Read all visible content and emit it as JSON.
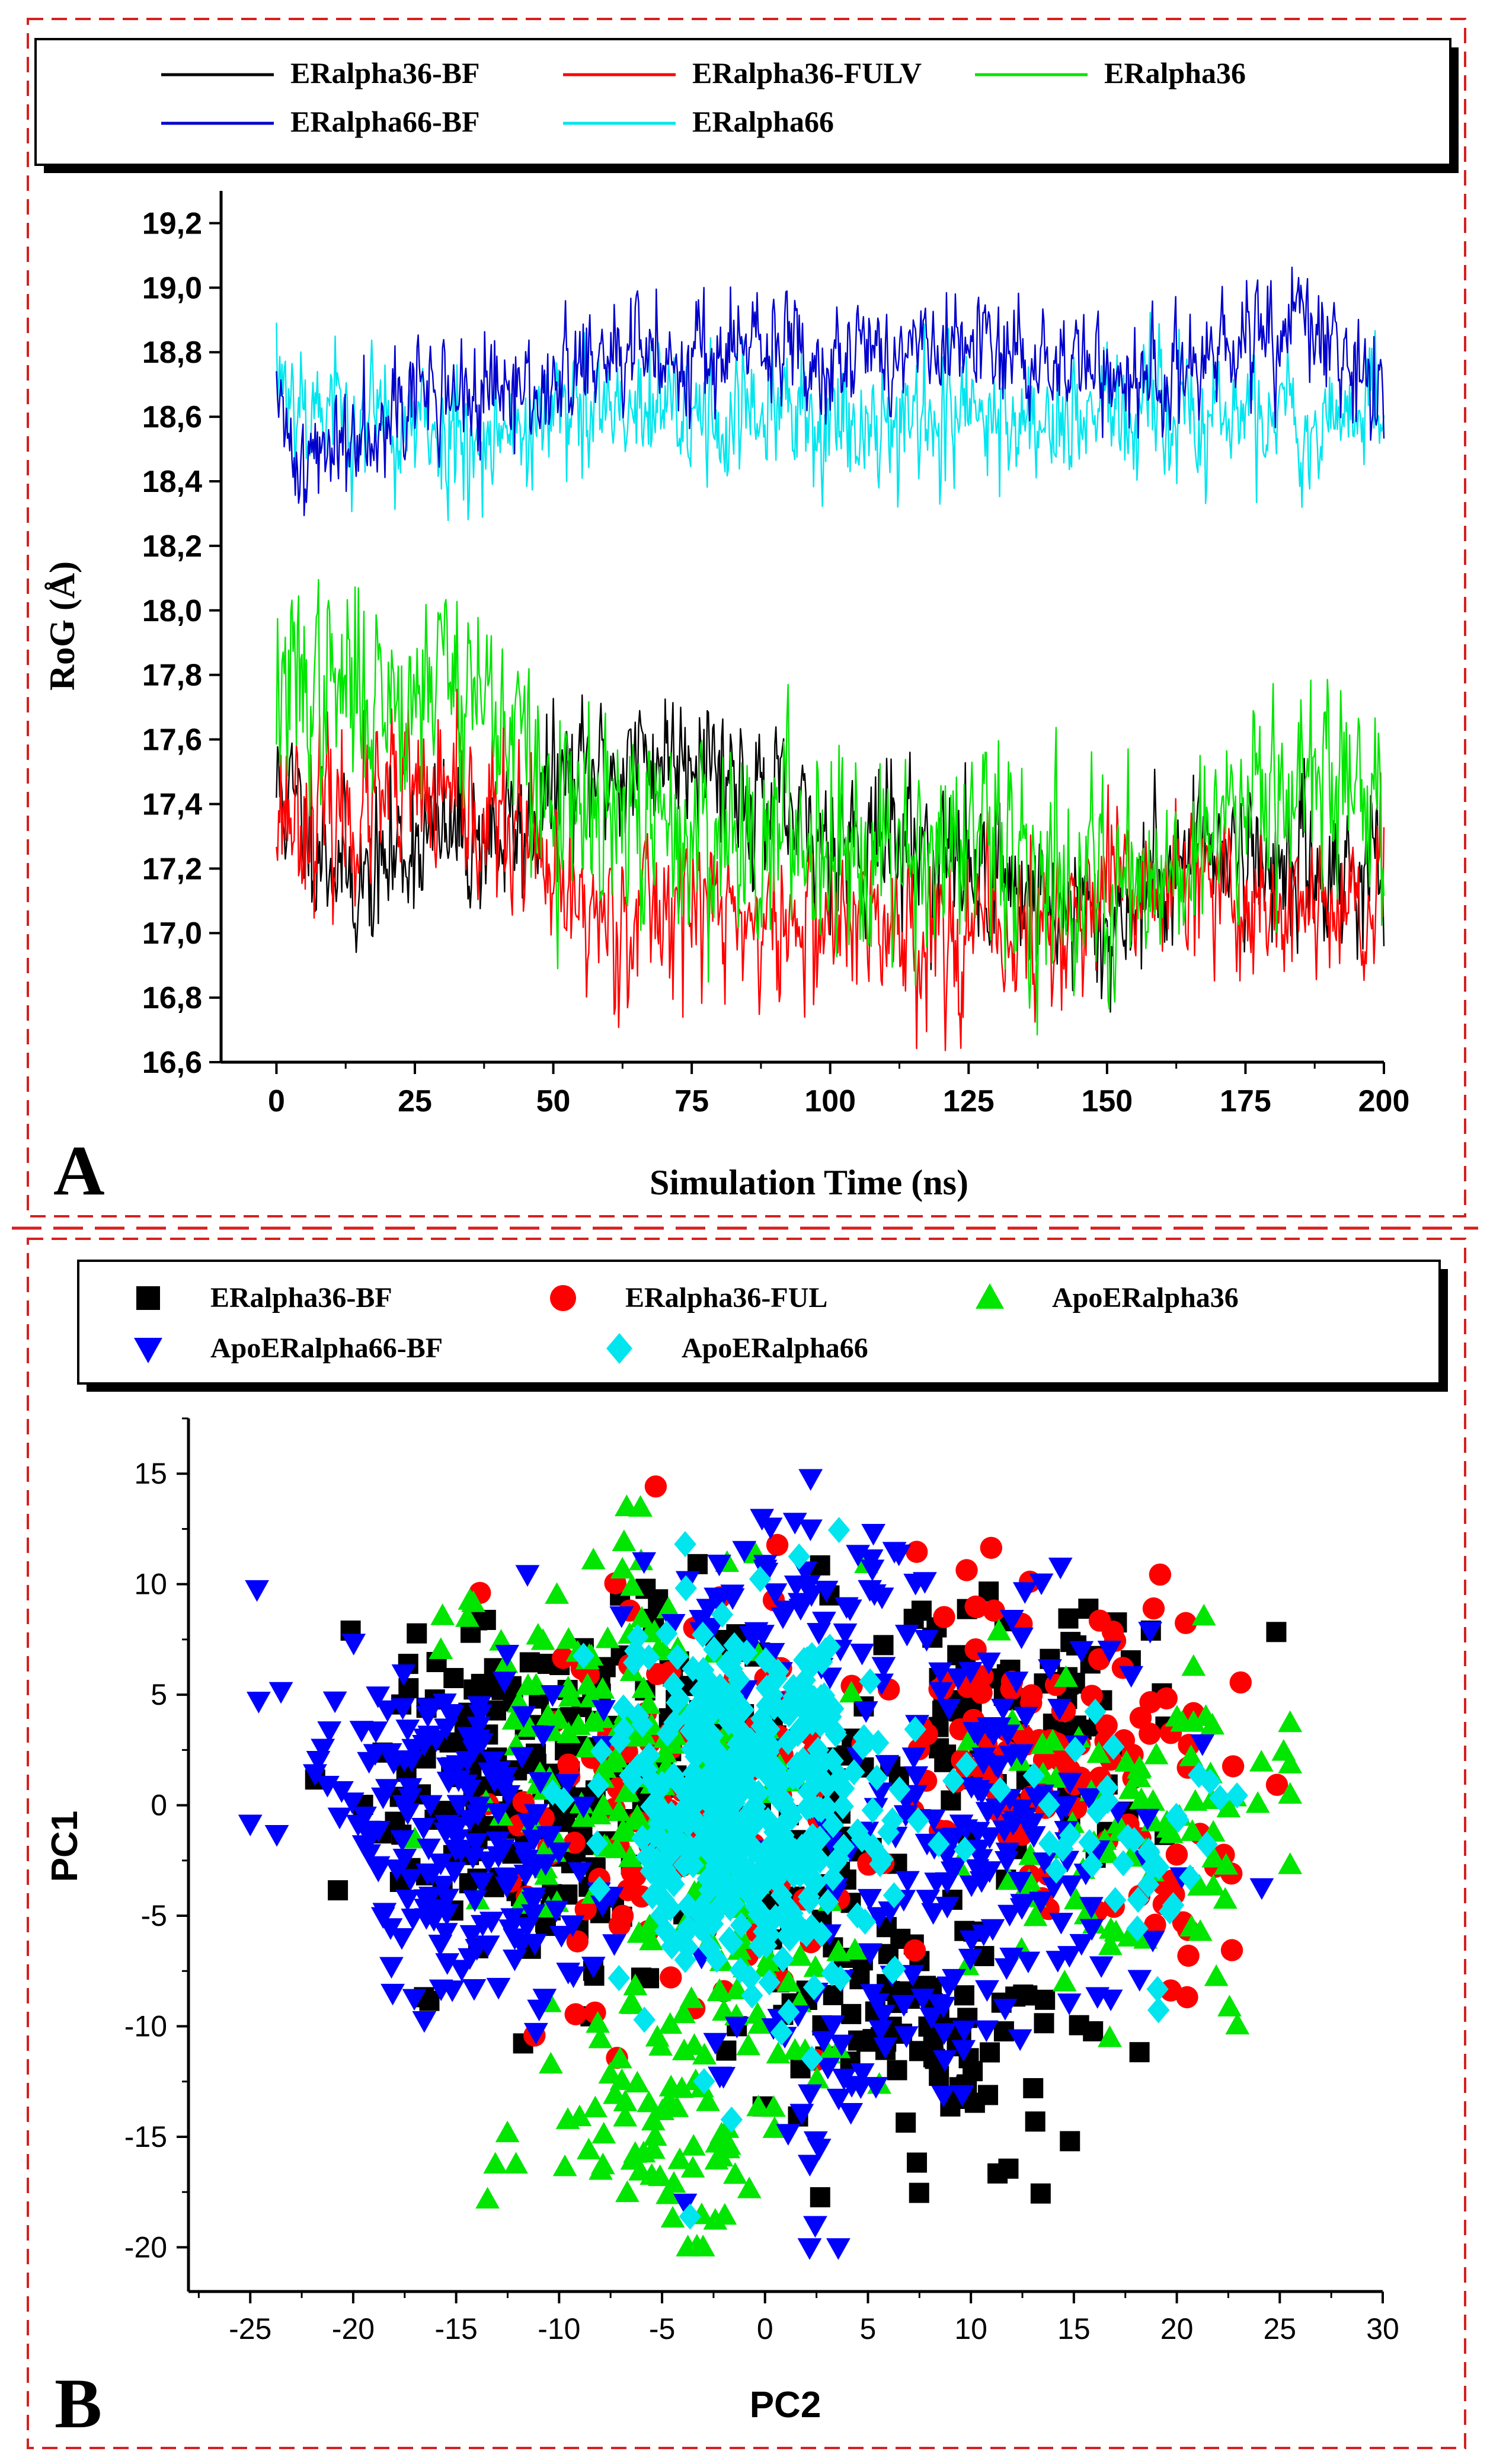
{
  "panelA": {
    "letter": "A",
    "chart_data": {
      "type": "line",
      "xlabel": "Simulation Time (ns)",
      "ylabel": "RoG (Å)",
      "xlim": [
        -10,
        200
      ],
      "ylim": [
        16.6,
        19.3
      ],
      "xticks": [
        "0",
        "25",
        "50",
        "75",
        "100",
        "125",
        "150",
        "175",
        "200"
      ],
      "yticks": [
        "16,6",
        "16,8",
        "17,0",
        "17,2",
        "17,4",
        "17,6",
        "17,8",
        "18,0",
        "18,2",
        "18,4",
        "18,6",
        "18,8",
        "19,0",
        "19,2"
      ],
      "legend_position": "top",
      "series": [
        {
          "name": "ERalpha36-BF",
          "color": "#000000",
          "seed": 11,
          "noise": 0.11,
          "knots": [
            [
              0,
              17.45
            ],
            [
              5,
              17.35
            ],
            [
              12,
              17.2
            ],
            [
              16,
              17.15
            ],
            [
              25,
              17.3
            ],
            [
              35,
              17.3
            ],
            [
              45,
              17.3
            ],
            [
              50,
              17.45
            ],
            [
              70,
              17.55
            ],
            [
              75,
              17.6
            ],
            [
              85,
              17.45
            ],
            [
              95,
              17.3
            ],
            [
              110,
              17.3
            ],
            [
              120,
              17.25
            ],
            [
              140,
              17.1
            ],
            [
              150,
              17.0
            ],
            [
              160,
              17.2
            ],
            [
              170,
              17.3
            ],
            [
              180,
              17.2
            ],
            [
              200,
              17.2
            ]
          ]
        },
        {
          "name": "ERalpha36-FULV",
          "color": "#ff0000",
          "seed": 23,
          "noise": 0.12,
          "knots": [
            [
              0,
              17.4
            ],
            [
              10,
              17.35
            ],
            [
              25,
              17.42
            ],
            [
              30,
              17.4
            ],
            [
              45,
              17.3
            ],
            [
              50,
              17.1
            ],
            [
              60,
              17.05
            ],
            [
              75,
              17.1
            ],
            [
              90,
              17.0
            ],
            [
              100,
              17.05
            ],
            [
              120,
              17.0
            ],
            [
              140,
              17.0
            ],
            [
              150,
              17.1
            ],
            [
              160,
              17.15
            ],
            [
              170,
              17.1
            ],
            [
              180,
              17.1
            ],
            [
              190,
              17.05
            ],
            [
              200,
              17.05
            ]
          ]
        },
        {
          "name": "ERalpha36",
          "color": "#00e600",
          "seed": 37,
          "noise": 0.15,
          "knots": [
            [
              0,
              17.75
            ],
            [
              10,
              17.75
            ],
            [
              25,
              17.75
            ],
            [
              30,
              17.85
            ],
            [
              40,
              17.7
            ],
            [
              45,
              17.55
            ],
            [
              50,
              17.35
            ],
            [
              75,
              17.3
            ],
            [
              100,
              17.3
            ],
            [
              125,
              17.25
            ],
            [
              150,
              17.15
            ],
            [
              160,
              17.2
            ],
            [
              170,
              17.3
            ],
            [
              175,
              17.5
            ],
            [
              185,
              17.5
            ],
            [
              200,
              17.4
            ]
          ]
        },
        {
          "name": "ERalpha66-BF",
          "color": "#0000cc",
          "seed": 41,
          "noise": 0.085,
          "knots": [
            [
              0,
              18.6
            ],
            [
              5,
              18.45
            ],
            [
              10,
              18.5
            ],
            [
              20,
              18.65
            ],
            [
              30,
              18.68
            ],
            [
              40,
              18.65
            ],
            [
              50,
              18.7
            ],
            [
              60,
              18.78
            ],
            [
              75,
              18.8
            ],
            [
              100,
              18.8
            ],
            [
              125,
              18.8
            ],
            [
              140,
              18.78
            ],
            [
              160,
              18.7
            ],
            [
              170,
              18.78
            ],
            [
              180,
              18.85
            ],
            [
              186,
              18.9
            ],
            [
              190,
              18.8
            ],
            [
              200,
              18.68
            ]
          ]
        },
        {
          "name": "ERalpha66",
          "color": "#00e5ee",
          "seed": 53,
          "noise": 0.1,
          "knots": [
            [
              0,
              18.75
            ],
            [
              5,
              18.65
            ],
            [
              15,
              18.6
            ],
            [
              25,
              18.55
            ],
            [
              40,
              18.55
            ],
            [
              50,
              18.6
            ],
            [
              75,
              18.6
            ],
            [
              100,
              18.6
            ],
            [
              125,
              18.6
            ],
            [
              150,
              18.6
            ],
            [
              175,
              18.6
            ],
            [
              200,
              18.6
            ]
          ]
        }
      ]
    }
  },
  "panelB": {
    "letter": "B",
    "chart_data": {
      "type": "scatter",
      "xlabel": "PC2",
      "ylabel": "PC1",
      "xlim": [
        -28,
        30
      ],
      "ylim": [
        -22,
        17.5
      ],
      "xticks": [
        "-25",
        "-20",
        "-15",
        "-10",
        "-5",
        "0",
        "5",
        "10",
        "15",
        "20",
        "25",
        "30"
      ],
      "yticks": [
        "-20",
        "-15",
        "-10",
        "-5",
        "0",
        "5",
        "10",
        "15"
      ],
      "legend_position": "top",
      "series": [
        {
          "name": "ERalpha36-BF",
          "marker": "square",
          "color": "#000000",
          "seed": 101,
          "clusters": [
            [
              -12,
              0,
              4,
              4,
              150
            ],
            [
              -5,
              4,
              4,
              3,
              80
            ],
            [
              7,
              -10,
              4,
              3,
              90
            ],
            [
              12,
              4,
              4,
              3,
              90
            ],
            [
              3,
              -3,
              3,
              3,
              40
            ]
          ]
        },
        {
          "name": "ERalpha36-FUL",
          "marker": "circle",
          "color": "#ff0000",
          "seed": 202,
          "clusters": [
            [
              -4,
              0,
              4,
              5,
              130
            ],
            [
              13,
              3,
              5,
              4,
              120
            ],
            [
              20,
              -5,
              3,
              2,
              15
            ]
          ]
        },
        {
          "name": "ApoERalpha36",
          "marker": "triangle-up",
          "color": "#00e600",
          "seed": 303,
          "clusters": [
            [
              -7,
              3,
              4,
              4,
              160
            ],
            [
              -6,
              -14,
              3,
              3,
              70
            ],
            [
              18,
              -1,
              4,
              4,
              90
            ],
            [
              -1,
              -8,
              3,
              3,
              50
            ]
          ]
        },
        {
          "name": "ApoERalpha66-BF",
          "marker": "triangle-down",
          "color": "#0000ff",
          "seed": 404,
          "clusters": [
            [
              -16,
              0,
              4,
              3,
              110
            ],
            [
              -13,
              -5,
              3,
              3,
              60
            ],
            [
              1,
              9,
              4,
              2,
              60
            ],
            [
              10,
              -2,
              5,
              5,
              170
            ],
            [
              4,
              -12,
              3,
              3,
              40
            ],
            [
              -18,
              4,
              3,
              2,
              20
            ]
          ]
        },
        {
          "name": "ApoERalpha66",
          "marker": "diamond",
          "color": "#00e5ee",
          "seed": 505,
          "clusters": [
            [
              -1,
              0,
              3,
              4,
              440
            ],
            [
              17,
              -2,
              3,
              3,
              40
            ],
            [
              4,
              -3,
              2,
              2,
              25
            ]
          ]
        }
      ]
    }
  }
}
